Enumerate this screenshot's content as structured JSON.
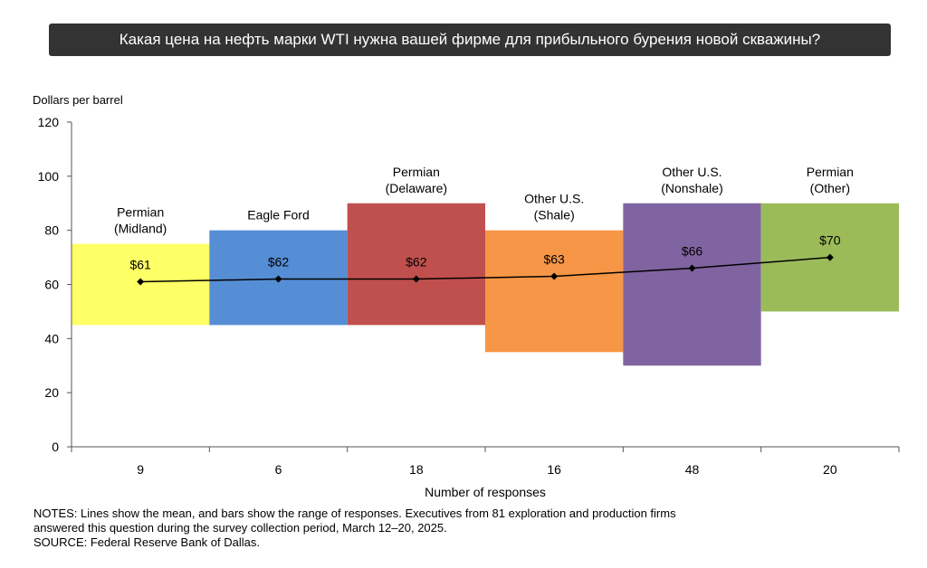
{
  "header": {
    "title": "Какая цена на нефть марки WTI нужна вашей фирме для прибыльного бурения новой скважины?"
  },
  "chart_data": {
    "type": "bar",
    "title": "Какая цена на нефть марки WTI нужна вашей фирме для прибыльного бурения новой скважины?",
    "ylabel": "Dollars per barrel",
    "xlabel": "Number of responses",
    "ylim": [
      0,
      120
    ],
    "yticks": [
      "0",
      "20",
      "40",
      "60",
      "80",
      "100",
      "120"
    ],
    "categories": [
      {
        "region_lines": [
          "Permian",
          "(Midland)"
        ],
        "responses": "9",
        "low": 45,
        "high": 75,
        "mean": 61,
        "mean_label": "$61",
        "color": "#FFFF66"
      },
      {
        "region_lines": [
          "Eagle Ford"
        ],
        "responses": "6",
        "low": 45,
        "high": 80,
        "mean": 62,
        "mean_label": "$62",
        "color": "#558ED5"
      },
      {
        "region_lines": [
          "Permian",
          "(Delaware)"
        ],
        "responses": "18",
        "low": 45,
        "high": 90,
        "mean": 62,
        "mean_label": "$62",
        "color": "#C0504D"
      },
      {
        "region_lines": [
          "Other U.S.",
          "(Shale)"
        ],
        "responses": "16",
        "low": 35,
        "high": 80,
        "mean": 63,
        "mean_label": "$63",
        "color": "#F79646"
      },
      {
        "region_lines": [
          "Other U.S.",
          "(Nonshale)"
        ],
        "responses": "48",
        "low": 30,
        "high": 90,
        "mean": 66,
        "mean_label": "$66",
        "color": "#8064A2"
      },
      {
        "region_lines": [
          "Permian",
          "(Other)"
        ],
        "responses": "20",
        "low": 50,
        "high": 90,
        "mean": 70,
        "mean_label": "$70",
        "color": "#9BBB59"
      }
    ],
    "mean_line_color": "#000000"
  },
  "notes": {
    "line1": "NOTES: Lines show the mean, and bars show the range of responses. Executives from 81 exploration and production firms",
    "line2": "answered this question during the survey collection period, March 12–20, 2025.",
    "source": "SOURCE: Federal Reserve Bank of Dallas."
  }
}
